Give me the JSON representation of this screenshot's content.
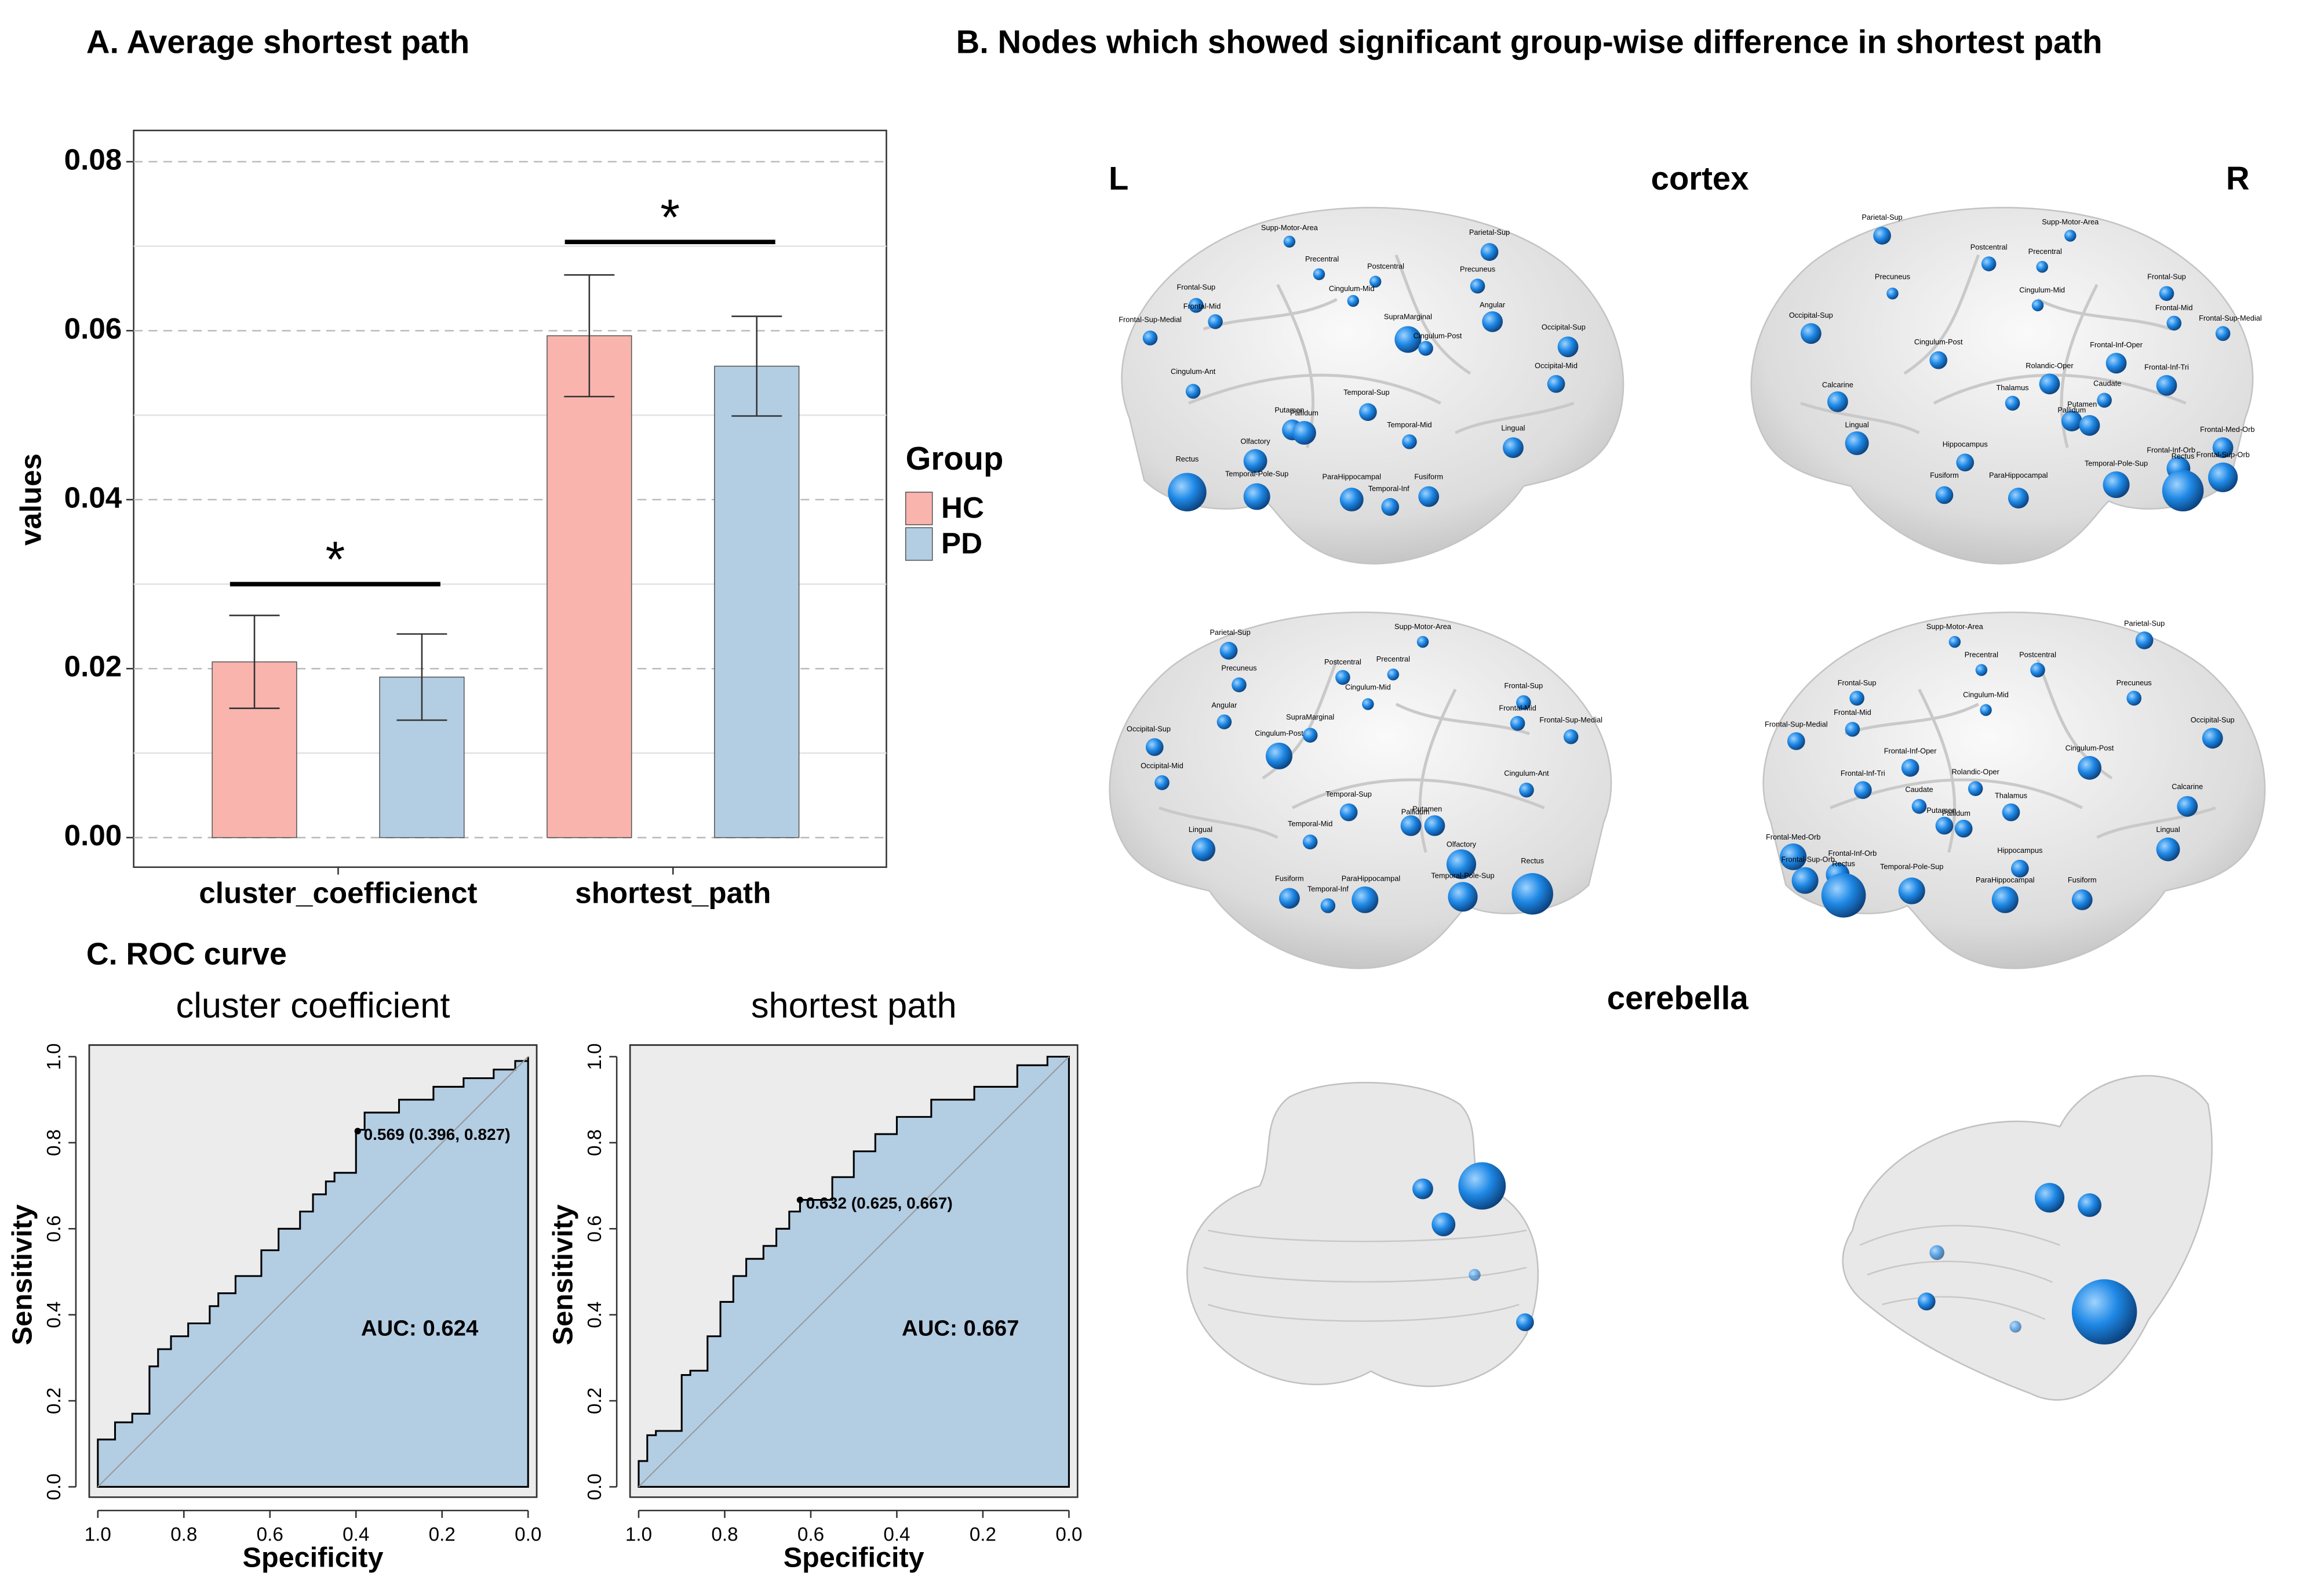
{
  "chart_data": [
    {
      "type": "bar",
      "title": "A. Average shortest path",
      "y_label": "values",
      "categories": [
        "cluster_coefficienct",
        "shortest_path"
      ],
      "legend_title": "Group",
      "series": [
        {
          "name": "HC",
          "color": "#f8b4ad",
          "values": [
            0.0208,
            0.0594
          ],
          "errors": [
            0.0055,
            0.0072
          ]
        },
        {
          "name": "PD",
          "color": "#b3cde3",
          "values": [
            0.019,
            0.0558
          ],
          "errors": [
            0.0051,
            0.0059
          ]
        }
      ],
      "annotations": [
        {
          "text": "*",
          "category": "cluster_coefficienct",
          "y": 0.03
        },
        {
          "text": "*",
          "category": "shortest_path",
          "y": 0.0705
        }
      ],
      "ylim": [
        -0.0035,
        0.0837
      ],
      "yticks": [
        {
          "value": 0,
          "label": "0.00"
        },
        {
          "value": 0.02,
          "label": "0.02"
        },
        {
          "value": 0.04,
          "label": "0.04"
        },
        {
          "value": 0.06,
          "label": "0.06"
        },
        {
          "value": 0.08,
          "label": "0.08"
        }
      ],
      "minor_yticks": [
        0.01,
        0.03,
        0.05,
        0.07
      ],
      "grid": true
    },
    {
      "type": "roc",
      "title": "cluster coefficient",
      "x_label": "Specificity",
      "y_label": "Sensitivity",
      "color": "#b3cde3",
      "x": [
        1.0,
        1.0,
        0.96,
        0.96,
        0.92,
        0.92,
        0.88,
        0.88,
        0.86,
        0.86,
        0.83,
        0.83,
        0.79,
        0.79,
        0.74,
        0.74,
        0.72,
        0.72,
        0.68,
        0.68,
        0.62,
        0.62,
        0.58,
        0.58,
        0.53,
        0.53,
        0.5,
        0.5,
        0.47,
        0.47,
        0.45,
        0.45,
        0.4,
        0.4,
        0.38,
        0.38,
        0.3,
        0.3,
        0.22,
        0.22,
        0.15,
        0.15,
        0.08,
        0.08,
        0.03,
        0.03,
        0.0,
        0.0
      ],
      "values": [
        0,
        0.11,
        0.11,
        0.15,
        0.15,
        0.17,
        0.17,
        0.28,
        0.28,
        0.32,
        0.32,
        0.35,
        0.35,
        0.38,
        0.38,
        0.42,
        0.42,
        0.45,
        0.45,
        0.49,
        0.49,
        0.55,
        0.55,
        0.6,
        0.6,
        0.64,
        0.64,
        0.68,
        0.68,
        0.71,
        0.71,
        0.73,
        0.73,
        0.83,
        0.83,
        0.87,
        0.87,
        0.9,
        0.9,
        0.93,
        0.93,
        0.95,
        0.95,
        0.97,
        0.97,
        0.99,
        0.99,
        1.0
      ],
      "threshold": {
        "x": 0.396,
        "y": 0.827,
        "label": "0.569 (0.396, 0.827)"
      },
      "auc_label": "AUC: 0.624",
      "xlim": [
        1.02,
        -0.02
      ],
      "ylim": [
        -0.024,
        1.027
      ],
      "xticks": [
        {
          "value": 1,
          "label": "1.0"
        },
        0.8,
        0.6,
        0.4,
        0.2,
        {
          "value": 0,
          "label": "0.0"
        }
      ],
      "yticks": [
        {
          "value": 0,
          "label": "0.0"
        },
        0.2,
        0.4,
        0.6,
        0.8,
        {
          "value": 1,
          "label": "1.0"
        }
      ]
    },
    {
      "type": "roc",
      "title": "shortest path",
      "x_label": "Specificity",
      "y_label": "Sensitivity",
      "color": "#b3cde3",
      "x": [
        1.0,
        1.0,
        0.98,
        0.98,
        0.96,
        0.96,
        0.9,
        0.9,
        0.88,
        0.88,
        0.84,
        0.84,
        0.81,
        0.81,
        0.78,
        0.78,
        0.75,
        0.75,
        0.71,
        0.71,
        0.68,
        0.68,
        0.65,
        0.65,
        0.625,
        0.625,
        0.55,
        0.55,
        0.5,
        0.5,
        0.45,
        0.45,
        0.4,
        0.4,
        0.32,
        0.32,
        0.22,
        0.22,
        0.12,
        0.12,
        0.05,
        0.05,
        0.0
      ],
      "values": [
        0,
        0.06,
        0.06,
        0.12,
        0.12,
        0.13,
        0.13,
        0.26,
        0.26,
        0.27,
        0.27,
        0.35,
        0.35,
        0.43,
        0.43,
        0.49,
        0.49,
        0.53,
        0.53,
        0.56,
        0.56,
        0.6,
        0.6,
        0.64,
        0.64,
        0.667,
        0.667,
        0.72,
        0.72,
        0.78,
        0.78,
        0.82,
        0.82,
        0.86,
        0.86,
        0.9,
        0.9,
        0.93,
        0.93,
        0.98,
        0.98,
        1.0,
        1.0
      ],
      "threshold": {
        "x": 0.625,
        "y": 0.667,
        "label": "0.632 (0.625, 0.667)"
      },
      "auc_label": "AUC: 0.667",
      "xlim": [
        1.02,
        -0.02
      ],
      "ylim": [
        -0.024,
        1.027
      ],
      "xticks": [
        {
          "value": 1,
          "label": "1.0"
        },
        0.8,
        0.6,
        0.4,
        0.2,
        {
          "value": 0,
          "label": "0.0"
        }
      ],
      "yticks": [
        {
          "value": 0,
          "label": "0.0"
        },
        0.2,
        0.4,
        0.6,
        0.8,
        {
          "value": 1,
          "label": "1.0"
        }
      ]
    }
  ],
  "panel_c_title": "C. ROC curve",
  "panel_b": {
    "title": "B. Nodes which showed significant group-wise difference in shortest path",
    "left": "L",
    "cortex": "cortex",
    "right": "R",
    "cerebella": "cerebella",
    "views": [
      {
        "labels": [
          "Supp-Motor-Area",
          "Parietal-Sup",
          "Precentral",
          "Postcentral",
          "Precuneus",
          "Frontal-Sup",
          "Frontal-Mid",
          "Cingulum-Mid",
          "Frontal-Sup-Medial",
          "SupraMarginal",
          "Angular",
          "Occipital-Sup",
          "Cingulum-Post",
          "Cingulum-Ant",
          "Occipital-Mid",
          "Temporal-Sup",
          "Putamen",
          "Pallidum",
          "Temporal-Mid",
          "Lingual",
          "Olfactory",
          "Rectus",
          "Temporal-Pole-Sup",
          "ParaHippocampal",
          "Fusiform",
          "Temporal-Inf"
        ]
      },
      {
        "labels": [
          "Parietal-Sup",
          "Supp-Motor-Area",
          "Postcentral",
          "Precentral",
          "Precuneus",
          "Cingulum-Mid",
          "Frontal-Sup",
          "Frontal-Mid",
          "Frontal-Sup-Medial",
          "Occipital-Sup",
          "Cingulum-Post",
          "Frontal-Inf-Oper",
          "Frontal-Inf-Tri",
          "Rolandic-Oper",
          "Calcarine",
          "Thalamus",
          "Caudate",
          "Putamen",
          "Pallidum",
          "Lingual",
          "Frontal-Med-Orb",
          "Hippocampus",
          "Frontal-Inf-Orb",
          "Temporal-Pole-Sup",
          "Fusiform",
          "ParaHippocampal",
          "Rectus",
          "Frontal-Sup-Orb"
        ]
      },
      {
        "labels": [
          "Parietal-Sup",
          "Supp-Motor-Area",
          "Postcentral",
          "Precentral",
          "Precuneus",
          "Cingulum-Mid",
          "Frontal-Sup",
          "Frontal-Mid",
          "Frontal-Sup-Medial",
          "Angular",
          "SupraMarginal",
          "Occipital-Sup",
          "Occipital-Mid",
          "Cingulum-Post",
          "Cingulum-Ant",
          "Temporal-Sup",
          "Pallidum",
          "Putamen",
          "Temporal-Mid",
          "Olfactory",
          "Lingual",
          "Rectus",
          "Fusiform",
          "Temporal-Inf",
          "ParaHippocampal",
          "Temporal-Pole-Sup"
        ]
      },
      {
        "labels": [
          "Parietal-Sup",
          "Supp-Motor-Area",
          "Precentral",
          "Postcentral",
          "Frontal-Sup",
          "Cingulum-Mid",
          "Precuneus",
          "Frontal-Mid",
          "Frontal-Sup-Medial",
          "Occipital-Sup",
          "Frontal-Inf-Oper",
          "Cingulum-Post",
          "Frontal-Inf-Tri",
          "Rolandic-Oper",
          "Caudate",
          "Thalamus",
          "Calcarine",
          "Putamen",
          "Pallidum",
          "Lingual",
          "Frontal-Med-Orb",
          "Frontal-Inf-Orb",
          "Hippocampus",
          "Frontal-Sup-Orb",
          "Rectus",
          "Temporal-Pole-Sup",
          "ParaHippocampal",
          "Fusiform"
        ]
      }
    ]
  }
}
